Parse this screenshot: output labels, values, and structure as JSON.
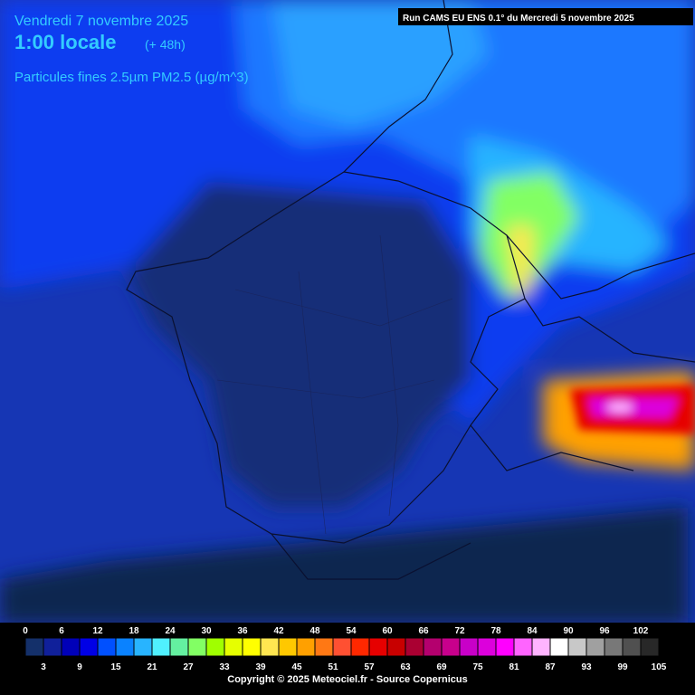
{
  "header": {
    "date": "Vendredi 7 novembre 2025",
    "time": "1:00 locale",
    "lead": "(+ 48h)",
    "parameter": "Particules fines 2.5µm PM2.5 (µg/m^3)",
    "run": "Run CAMS EU ENS 0.1° du Mercredi 5 novembre 2025"
  },
  "legend": {
    "values": [
      0,
      3,
      6,
      9,
      12,
      15,
      18,
      21,
      24,
      27,
      30,
      33,
      36,
      39,
      42,
      45,
      48,
      51,
      54,
      57,
      60,
      63,
      66,
      69,
      72,
      75,
      78,
      81,
      84,
      87,
      90,
      93,
      96,
      99,
      102,
      105
    ],
    "colors": [
      "#14306a",
      "#10209a",
      "#0000b8",
      "#0000e6",
      "#0050ff",
      "#0a82ff",
      "#28b4ff",
      "#50f0ff",
      "#64f0a0",
      "#82ff64",
      "#a0ff00",
      "#e6ff00",
      "#ffff00",
      "#ffe650",
      "#ffc800",
      "#ffa000",
      "#ff7814",
      "#ff5032",
      "#ff2800",
      "#e60000",
      "#c80000",
      "#aa0032",
      "#b4006e",
      "#c8008c",
      "#c800c8",
      "#dc00dc",
      "#ff00ff",
      "#ff64ff",
      "#ffb4ff",
      "#ffffff",
      "#c8c8c8",
      "#a0a0a0",
      "#787878",
      "#505050",
      "#282828",
      "#000000"
    ]
  },
  "footer": {
    "copyright": "Copyright © 2025 Meteociel.fr - Source Copernicus"
  }
}
